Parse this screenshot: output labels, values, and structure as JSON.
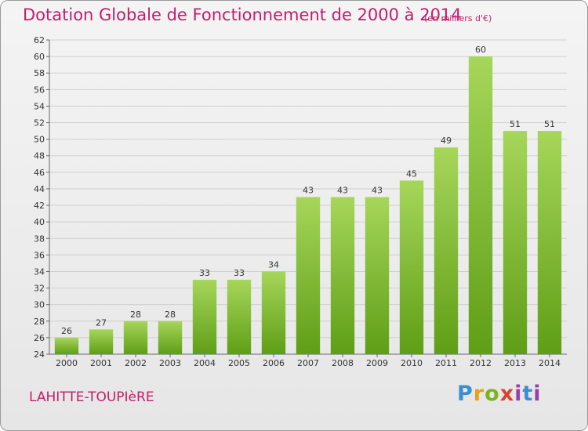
{
  "header": {
    "title": "Dotation Globale de Fonctionnement de 2000 à 2014",
    "unit": "(en milliers d'€)"
  },
  "footer": {
    "commune": "LAHITTE-TOUPIèRE",
    "logo": "Proxiti"
  },
  "colors": {
    "title": "#c0206a",
    "bar_light": "#a6d65a",
    "bar_dark": "#5f9e16"
  },
  "chart_data": {
    "type": "bar",
    "categories": [
      "2000",
      "2001",
      "2002",
      "2003",
      "2004",
      "2005",
      "2006",
      "2007",
      "2008",
      "2009",
      "2010",
      "2011",
      "2012",
      "2013",
      "2014"
    ],
    "values": [
      26,
      27,
      28,
      28,
      33,
      33,
      34,
      43,
      43,
      43,
      45,
      49,
      60,
      51,
      51
    ],
    "title": "Dotation Globale de Fonctionnement de 2000 à 2014",
    "ylim": [
      24,
      62
    ],
    "yticks": [
      24,
      26,
      28,
      30,
      32,
      34,
      36,
      38,
      40,
      42,
      44,
      46,
      48,
      50,
      52,
      54,
      56,
      58,
      60,
      62
    ],
    "grid": true
  }
}
